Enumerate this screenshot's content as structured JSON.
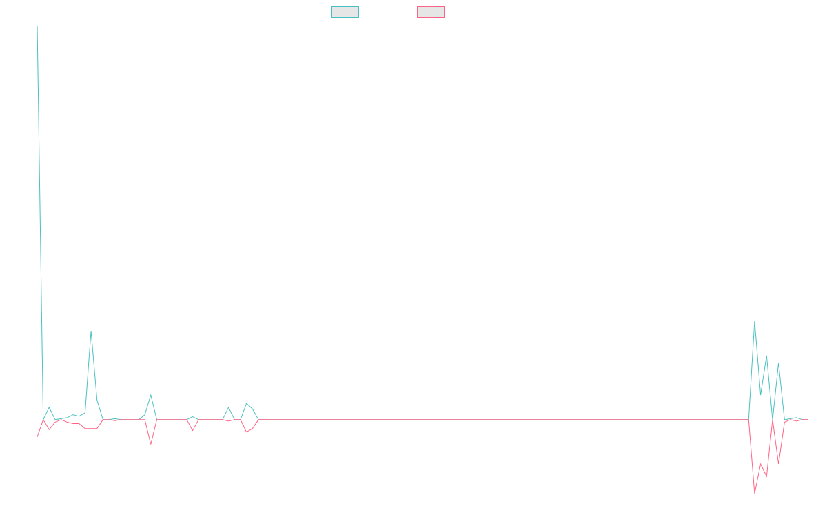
{
  "chart_data": {
    "type": "line",
    "title": "",
    "xlabel": "",
    "ylabel": "",
    "grid": false,
    "legend_position": "top-center",
    "colors": {
      "series_a": "#4bc0c0",
      "series_b": "#ff6384",
      "legend_fill": "#e6e6e6",
      "axis": "#e5e5e5"
    },
    "ylim": [
      -0.15,
      0.8
    ],
    "x": [
      0,
      1,
      2,
      3,
      4,
      5,
      6,
      7,
      8,
      9,
      10,
      11,
      12,
      13,
      14,
      15,
      16,
      17,
      18,
      19,
      20,
      21,
      22,
      23,
      24,
      25,
      26,
      27,
      28,
      29,
      30,
      31,
      32,
      33,
      34,
      35,
      36,
      37,
      38,
      39,
      40,
      119,
      120,
      121,
      122,
      123,
      124,
      125,
      126,
      127,
      128,
      129
    ],
    "series": [
      {
        "values": [
          0.8,
          0.0,
          0.025,
          0.0,
          0.002,
          0.004,
          0.01,
          0.007,
          0.014,
          0.18,
          0.04,
          0.0,
          0.0,
          0.002,
          0.0,
          0.0,
          0.0,
          0.0,
          0.01,
          0.05,
          0.0,
          0.0,
          0.0,
          0.0,
          0.0,
          0.0,
          0.006,
          0.0,
          0.0,
          0.0,
          0.0,
          0.0,
          0.025,
          0.0,
          0.0,
          0.033,
          0.022,
          0.0,
          0.0,
          0.0,
          0.0,
          0.0,
          0.2,
          0.05,
          0.13,
          0.0,
          0.115,
          0.0,
          0.002,
          0.004,
          0.0,
          0.0
        ]
      },
      {
        "values": [
          -0.035,
          0.0,
          -0.02,
          -0.005,
          0.0,
          -0.005,
          -0.008,
          -0.008,
          -0.018,
          -0.018,
          -0.018,
          0.0,
          0.0,
          -0.002,
          0.0,
          0.0,
          0.0,
          0.0,
          0.0,
          -0.05,
          0.0,
          0.0,
          0.0,
          0.0,
          0.0,
          0.0,
          -0.022,
          0.0,
          0.0,
          0.0,
          0.0,
          0.0,
          -0.003,
          0.0,
          0.0,
          -0.025,
          -0.018,
          0.0,
          0.0,
          0.0,
          0.0,
          0.0,
          -0.15,
          -0.09,
          -0.115,
          0.0,
          -0.09,
          -0.005,
          0.0,
          -0.003,
          0.0,
          0.0
        ]
      }
    ]
  }
}
